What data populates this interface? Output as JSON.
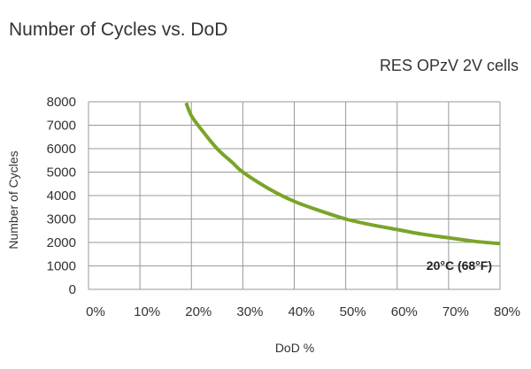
{
  "chart_data": {
    "type": "line",
    "title": "Number of Cycles vs. DoD",
    "subtitle": "RES OPzV 2V cells",
    "xlabel": "DoD %",
    "ylabel": "Number of Cycles",
    "xlim": [
      0,
      80
    ],
    "ylim": [
      0,
      8000
    ],
    "x_ticks": [
      0,
      10,
      20,
      30,
      40,
      50,
      60,
      70,
      80
    ],
    "x_tick_labels": [
      "0%",
      "10%",
      "20%",
      "30%",
      "40%",
      "50%",
      "60%",
      "70%",
      "80%"
    ],
    "y_ticks": [
      0,
      1000,
      2000,
      3000,
      4000,
      5000,
      6000,
      7000,
      8000
    ],
    "y_tick_labels": [
      "0",
      "1000",
      "2000",
      "3000",
      "4000",
      "5000",
      "6000",
      "7000",
      "8000"
    ],
    "grid": true,
    "annotation": "20°C (68°F)",
    "series": [
      {
        "name": "20°C (68°F)",
        "color": "#7ba428",
        "x": [
          19,
          20,
          22,
          25,
          28,
          30,
          35,
          40,
          45,
          50,
          55,
          60,
          65,
          70,
          75,
          80
        ],
        "values": [
          7950,
          7400,
          6800,
          6000,
          5400,
          5000,
          4300,
          3750,
          3350,
          3000,
          2750,
          2550,
          2350,
          2200,
          2050,
          1950
        ]
      }
    ]
  }
}
